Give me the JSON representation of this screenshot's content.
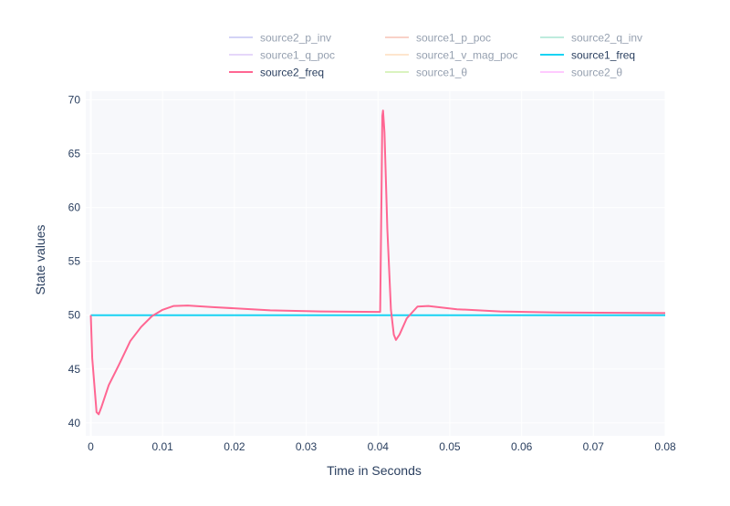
{
  "chart_data": {
    "type": "line",
    "title": "",
    "xlabel": "Time in Seconds",
    "ylabel": "State values",
    "xlim": [
      -0.0007,
      0.08
    ],
    "ylim": [
      38.8,
      70.8
    ],
    "x_ticks": [
      0,
      0.01,
      0.02,
      0.03,
      0.04,
      0.05,
      0.06,
      0.07,
      0.08
    ],
    "x_tick_labels": [
      "0",
      "0.01",
      "0.02",
      "0.03",
      "0.04",
      "0.05",
      "0.06",
      "0.07",
      "0.08"
    ],
    "y_ticks": [
      40,
      45,
      50,
      55,
      60,
      65,
      70
    ],
    "y_tick_labels": [
      "40",
      "45",
      "50",
      "55",
      "60",
      "65",
      "70"
    ],
    "grid": true,
    "legend_position": "top",
    "series": [
      {
        "name": "source2_p_inv",
        "color": "#a9a9ef",
        "visible": false,
        "points": []
      },
      {
        "name": "source1_p_poc",
        "color": "#f4a792",
        "visible": false,
        "points": []
      },
      {
        "name": "source2_q_inv",
        "color": "#7fd9bd",
        "visible": false,
        "points": []
      },
      {
        "name": "source1_q_poc",
        "color": "#cfb0f7",
        "visible": false,
        "points": []
      },
      {
        "name": "source1_v_mag_poc",
        "color": "#fecf9f",
        "visible": false,
        "points": []
      },
      {
        "name": "source1_freq",
        "color": "#19d3f3",
        "visible": true,
        "points": [
          [
            0,
            50
          ],
          [
            0.08,
            50
          ]
        ]
      },
      {
        "name": "source2_freq",
        "color": "#ff6692",
        "visible": true,
        "points": [
          [
            0,
            50
          ],
          [
            0.0002,
            46
          ],
          [
            0.0005,
            43.5
          ],
          [
            0.0008,
            41
          ],
          [
            0.0011,
            40.8
          ],
          [
            0.0015,
            41.5
          ],
          [
            0.0025,
            43.5
          ],
          [
            0.004,
            45.5
          ],
          [
            0.0055,
            47.6
          ],
          [
            0.007,
            48.9
          ],
          [
            0.0085,
            49.9
          ],
          [
            0.01,
            50.5
          ],
          [
            0.0115,
            50.85
          ],
          [
            0.0135,
            50.9
          ],
          [
            0.017,
            50.75
          ],
          [
            0.025,
            50.45
          ],
          [
            0.032,
            50.35
          ],
          [
            0.0403,
            50.3
          ],
          [
            0.0405,
            62
          ],
          [
            0.0406,
            68.5
          ],
          [
            0.0407,
            69
          ],
          [
            0.0409,
            67
          ],
          [
            0.0413,
            58
          ],
          [
            0.0418,
            50.5
          ],
          [
            0.0422,
            48.2
          ],
          [
            0.0425,
            47.7
          ],
          [
            0.043,
            48.2
          ],
          [
            0.044,
            49.7
          ],
          [
            0.0455,
            50.8
          ],
          [
            0.047,
            50.85
          ],
          [
            0.051,
            50.55
          ],
          [
            0.057,
            50.35
          ],
          [
            0.065,
            50.25
          ],
          [
            0.08,
            50.2
          ]
        ]
      },
      {
        "name": "source1_θ",
        "color": "#b6e880",
        "visible": false,
        "points": []
      },
      {
        "name": "source2_θ",
        "color": "#ff97ff",
        "visible": false,
        "points": []
      }
    ]
  }
}
